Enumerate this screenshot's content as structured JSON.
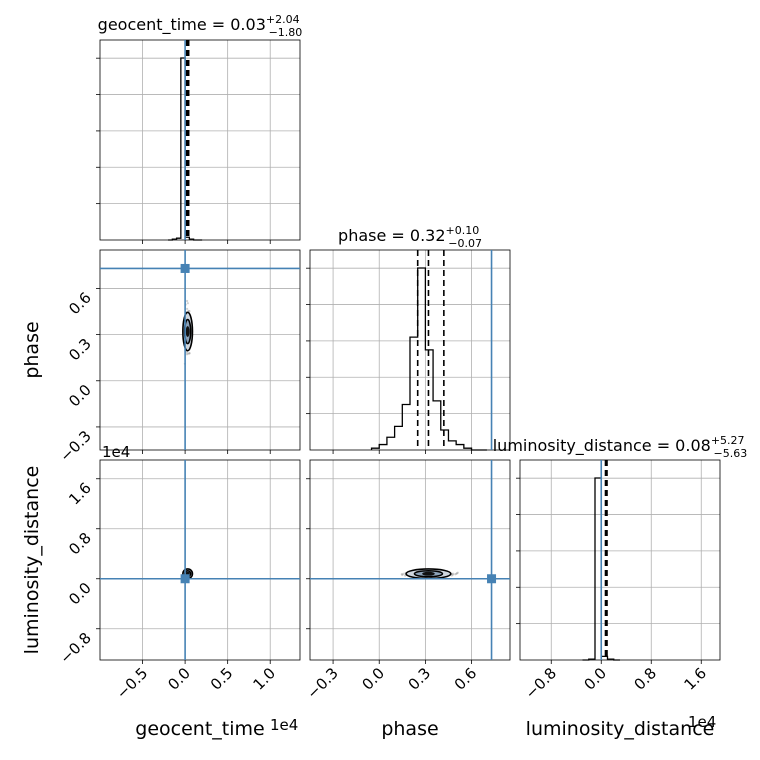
{
  "chart_data": {
    "type": "scatter",
    "parameters": [
      {
        "name": "geocent_time",
        "median": 0.03,
        "plus": 2.04,
        "minus": 1.8,
        "title_text": "geocent_time = 0.03",
        "title_plus": "+2.04",
        "title_minus": "−1.80",
        "range": [
          -1.0,
          1.35
        ],
        "ticks": [
          -0.5,
          0.0,
          0.5,
          1.0
        ],
        "tick_labels": [
          "−0.5",
          "0.0",
          "0.5",
          "1.0"
        ],
        "offset_label": "1e4",
        "truth": 0.0,
        "hist_bins": [
          -0.2,
          -0.15,
          -0.1,
          -0.05,
          0.0,
          0.05,
          0.1,
          0.15,
          0.2
        ],
        "hist_counts": [
          0.0,
          0.005,
          0.01,
          1.0,
          0.015,
          0.005,
          0.0,
          0.0
        ]
      },
      {
        "name": "phase",
        "median": 0.32,
        "plus": 0.1,
        "minus": 0.07,
        "title_text": "phase = 0.32",
        "title_plus": "+0.10",
        "title_minus": "−0.07",
        "range": [
          -0.45,
          0.85
        ],
        "ticks": [
          -0.3,
          0.0,
          0.3,
          0.6
        ],
        "tick_labels": [
          "−0.3",
          "0.0",
          "0.3",
          "0.6"
        ],
        "offset_label": "",
        "truth": 0.73,
        "quantiles": [
          0.25,
          0.32,
          0.42
        ],
        "hist_bins": [
          -0.05,
          0.0,
          0.05,
          0.1,
          0.15,
          0.2,
          0.25,
          0.3,
          0.35,
          0.4,
          0.45,
          0.5,
          0.55,
          0.6,
          0.65,
          0.7
        ],
        "hist_counts": [
          0.01,
          0.03,
          0.07,
          0.13,
          0.25,
          0.62,
          1.0,
          0.55,
          0.27,
          0.11,
          0.05,
          0.03,
          0.01,
          0.0,
          0.0
        ]
      },
      {
        "name": "luminosity_distance",
        "median": 0.08,
        "plus": 5.27,
        "minus": 5.63,
        "title_text": "luminosity_distance = 0.08",
        "title_plus": "+5.27",
        "title_minus": "−5.63",
        "range": [
          -1.3,
          1.9
        ],
        "ticks": [
          -0.8,
          0.0,
          0.8,
          1.6
        ],
        "tick_labels": [
          "−0.8",
          "0.0",
          "0.8",
          "1.6"
        ],
        "offset_label": "1e4",
        "truth": 0.0,
        "hist_bins": [
          -0.3,
          -0.2,
          -0.1,
          0.0,
          0.1,
          0.2,
          0.3
        ],
        "hist_counts": [
          0.0,
          0.005,
          1.0,
          0.02,
          0.005,
          0.0
        ]
      }
    ],
    "truth_color": "#4682b4",
    "contour_color": "#000000",
    "grid": true
  }
}
